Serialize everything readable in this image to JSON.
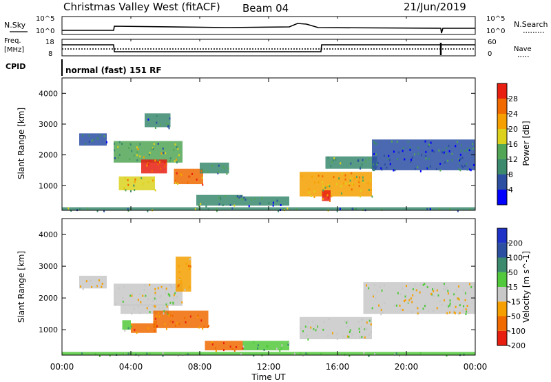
{
  "header": {
    "title": "Christmas Valley West (fitACF)",
    "beam": "Beam 04",
    "date": "21/Jun/2019"
  },
  "params": {
    "nsky_label": "N.Sky",
    "nsearch_label": "N.Search",
    "freq_label_1": "Freq.",
    "freq_label_2": "[MHz]",
    "nave_label": "Nave",
    "cpid_label": "CPID",
    "cpid_value": "normal (fast) 151 RF",
    "noise_ticks_left": [
      "10^5",
      "10^0"
    ],
    "noise_ticks_right": [
      "10^5",
      "10^0"
    ],
    "freq_ticks": [
      "18",
      "8"
    ],
    "nave_ticks": [
      "60",
      "0"
    ]
  },
  "colors": {
    "power": [
      "#0000ff",
      "#2c4fa2",
      "#3b8a6e",
      "#52a656",
      "#dcd21e",
      "#f5a000",
      "#f06a00",
      "#e81e10"
    ],
    "velocity": [
      "#e81e10",
      "#f06a00",
      "#f5a000",
      "#c8c8c8",
      "#52c83c",
      "#3b8a6e",
      "#2c4fa2",
      "#1e32c8"
    ]
  },
  "chart_data": [
    {
      "type": "heatmap",
      "name": "power",
      "ylabel": "Slant Range [km]",
      "yticks": [
        "1000",
        "2000",
        "3000",
        "4000"
      ],
      "ylim": [
        200,
        4500
      ],
      "xlim": [
        0,
        24
      ],
      "colorbar": {
        "label": "Power [dB]",
        "ticks": [
          "4",
          "8",
          "12",
          "16",
          "20",
          "24",
          "28"
        ],
        "range": [
          0,
          30
        ]
      },
      "blobs": [
        {
          "t0": 3.0,
          "t1": 7.0,
          "r0": 1750,
          "r1": 2450,
          "v": 13
        },
        {
          "t0": 4.6,
          "t1": 6.1,
          "r0": 1400,
          "r1": 1850,
          "v": 27
        },
        {
          "t0": 6.5,
          "t1": 8.2,
          "r0": 1050,
          "r1": 1550,
          "v": 23
        },
        {
          "t0": 3.3,
          "t1": 5.4,
          "r0": 850,
          "r1": 1300,
          "v": 17
        },
        {
          "t0": 1.0,
          "t1": 2.6,
          "r0": 2300,
          "r1": 2700,
          "v": 7
        },
        {
          "t0": 4.8,
          "t1": 6.3,
          "r0": 2900,
          "r1": 3350,
          "v": 9
        },
        {
          "t0": 8.0,
          "t1": 9.7,
          "r0": 1400,
          "r1": 1750,
          "v": 11
        },
        {
          "t0": 7.8,
          "t1": 10.5,
          "r0": 350,
          "r1": 700,
          "v": 10
        },
        {
          "t0": 10.5,
          "t1": 13.2,
          "r0": 350,
          "r1": 650,
          "v": 8
        },
        {
          "t0": 13.8,
          "t1": 18.0,
          "r0": 650,
          "r1": 1450,
          "v": 19
        },
        {
          "t0": 15.1,
          "t1": 15.6,
          "r0": 500,
          "r1": 850,
          "v": 27
        },
        {
          "t0": 15.3,
          "t1": 18.3,
          "r0": 1550,
          "r1": 1950,
          "v": 11
        },
        {
          "t0": 18.0,
          "t1": 24.0,
          "r0": 1500,
          "r1": 2500,
          "v": 7
        },
        {
          "t0": 0.0,
          "t1": 24.0,
          "r0": 200,
          "r1": 300,
          "v": 10
        }
      ]
    },
    {
      "type": "heatmap",
      "name": "velocity",
      "ylabel": "Slant Range [km]",
      "yticks": [
        "1000",
        "2000",
        "3000",
        "4000"
      ],
      "ylim": [
        200,
        4500
      ],
      "xlim": [
        0,
        24
      ],
      "xticks": [
        "00:00",
        "04:00",
        "08:00",
        "12:00",
        "16:00",
        "20:00",
        "00:00"
      ],
      "xlabel": "Time UT",
      "colorbar": {
        "label": "Velocity [m s^-1]",
        "ticks": [
          "200",
          "100",
          "50",
          "15",
          "-15",
          "-50",
          "-100",
          "-200"
        ]
      },
      "blobs": [
        {
          "t0": 3.0,
          "t1": 7.0,
          "r0": 1750,
          "r1": 2450,
          "v": 3
        },
        {
          "t0": 3.4,
          "t1": 6.2,
          "r0": 1500,
          "r1": 1800,
          "v": 3
        },
        {
          "t0": 5.3,
          "t1": 8.5,
          "r0": 1050,
          "r1": 1600,
          "v": 1
        },
        {
          "t0": 4.0,
          "t1": 5.5,
          "r0": 900,
          "r1": 1200,
          "v": 1
        },
        {
          "t0": 3.5,
          "t1": 4.0,
          "r0": 1000,
          "r1": 1300,
          "v": 4
        },
        {
          "t0": 1.0,
          "t1": 2.6,
          "r0": 2300,
          "r1": 2700,
          "v": 3
        },
        {
          "t0": 6.6,
          "t1": 7.5,
          "r0": 2200,
          "r1": 3300,
          "v": 2
        },
        {
          "t0": 8.3,
          "t1": 10.5,
          "r0": 350,
          "r1": 650,
          "v": 1
        },
        {
          "t0": 10.5,
          "t1": 13.2,
          "r0": 350,
          "r1": 650,
          "v": 4
        },
        {
          "t0": 13.8,
          "t1": 18.0,
          "r0": 700,
          "r1": 1400,
          "v": 3
        },
        {
          "t0": 17.5,
          "t1": 24.0,
          "r0": 1500,
          "r1": 2500,
          "v": 3
        },
        {
          "t0": 0.0,
          "t1": 24.0,
          "r0": 200,
          "r1": 300,
          "v": 4
        }
      ]
    }
  ]
}
